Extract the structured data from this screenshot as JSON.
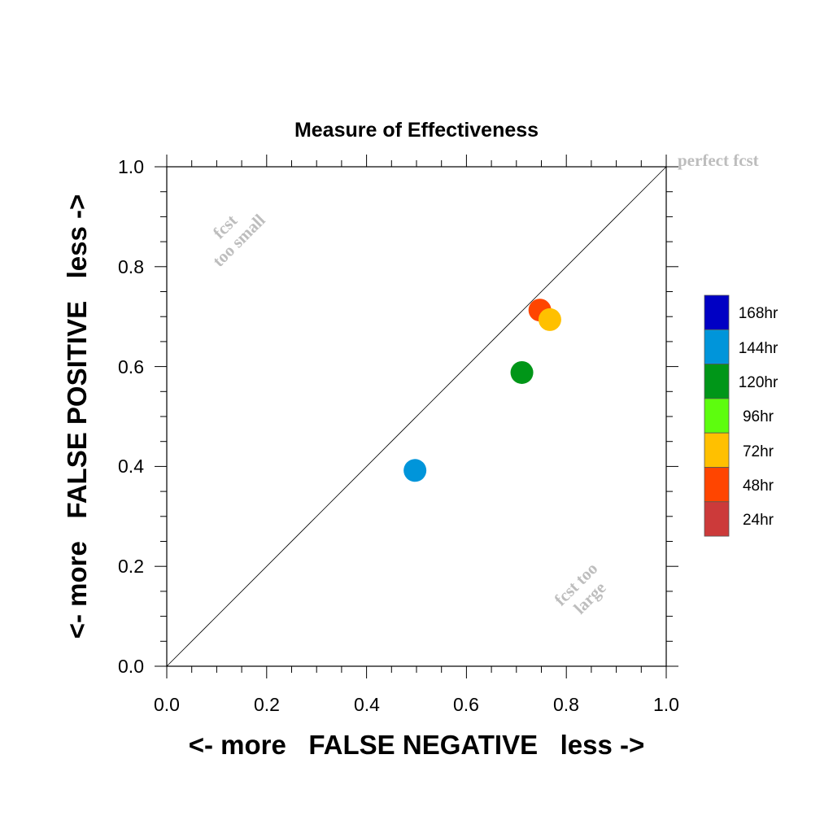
{
  "chart_data": {
    "type": "scatter",
    "title": "Measure of Effectiveness",
    "xlabel": "<- more   FALSE NEGATIVE   less ->",
    "ylabel": "<- more   FALSE POSITIVE   less ->",
    "xlim": [
      0,
      1
    ],
    "ylim": [
      0,
      1
    ],
    "xticks": [
      "0.0",
      "0.2",
      "0.4",
      "0.6",
      "0.8",
      "1.0"
    ],
    "yticks": [
      "0.0",
      "0.2",
      "0.4",
      "0.6",
      "0.8",
      "1.0"
    ],
    "grid": false,
    "reference_line": "diagonal",
    "annotations": {
      "perfect": "perfect fcst",
      "too_small_1": "fcst",
      "too_small_2": "too small",
      "too_large_1": "fcst too",
      "too_large_2": "large"
    },
    "legend": {
      "placement": "right",
      "entries": [
        {
          "label": "168hr",
          "color": "#0000c4"
        },
        {
          "label": "144hr",
          "color": "#0095da"
        },
        {
          "label": "120hr",
          "color": "#009618"
        },
        {
          "label": "96hr",
          "color": "#5dfd0e"
        },
        {
          "label": "72hr",
          "color": "#ffc000"
        },
        {
          "label": "48hr",
          "color": "#ff4500"
        },
        {
          "label": "24hr",
          "color": "#cc3a3a"
        }
      ]
    },
    "points": [
      {
        "series": "144hr",
        "x": 0.497,
        "y": 0.392,
        "color": "#0095da"
      },
      {
        "series": "120hr",
        "x": 0.711,
        "y": 0.588,
        "color": "#009618"
      },
      {
        "series": "48hr",
        "x": 0.747,
        "y": 0.713,
        "color": "#ff4500"
      },
      {
        "series": "72hr",
        "x": 0.767,
        "y": 0.694,
        "color": "#ffc000"
      }
    ]
  }
}
